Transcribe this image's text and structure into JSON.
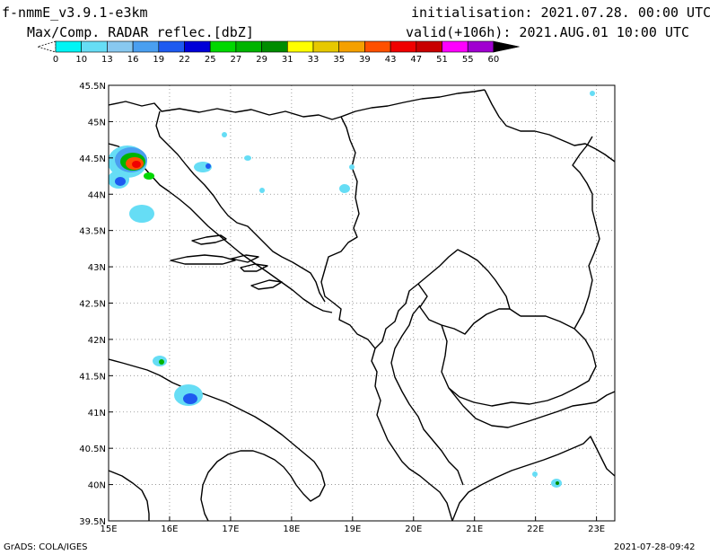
{
  "header": {
    "model": "f-nmmE_v3.9.1-e3km",
    "product": "Max/Comp. RADAR reflec.[dbZ]",
    "initialisation": "initialisation: 2021.07.28. 00:00 UTC",
    "valid": "valid(+106h): 2021.AUG.01 10:00 UTC"
  },
  "colorbar": {
    "labels": [
      "0",
      "10",
      "13",
      "16",
      "19",
      "22",
      "25",
      "27",
      "29",
      "31",
      "33",
      "35",
      "39",
      "43",
      "47",
      "51",
      "55",
      "60"
    ],
    "colors": [
      "#00f5f5",
      "#66ddf5",
      "#88c8f0",
      "#4a9ff0",
      "#1e5af0",
      "#0000d8",
      "#00d800",
      "#00b400",
      "#008c00",
      "#ffff00",
      "#e6c800",
      "#f5a000",
      "#ff5000",
      "#f00000",
      "#c80000",
      "#ff00ff",
      "#a000d0",
      "#000000"
    ]
  },
  "map": {
    "lon_ticks": [
      "15E",
      "16E",
      "17E",
      "18E",
      "19E",
      "20E",
      "21E",
      "22E",
      "23E"
    ],
    "lat_ticks": [
      "39.5N",
      "40N",
      "40.5N",
      "41N",
      "41.5N",
      "42N",
      "42.5N",
      "43N",
      "43.5N",
      "44N",
      "44.5N",
      "45N",
      "45.5N"
    ],
    "lon_range": [
      15.0,
      23.3
    ],
    "lat_range": [
      39.5,
      45.5
    ]
  },
  "footer": {
    "credit": "GrADS: COLA/IGES",
    "timestamp": "2021-07-28-09:42"
  }
}
